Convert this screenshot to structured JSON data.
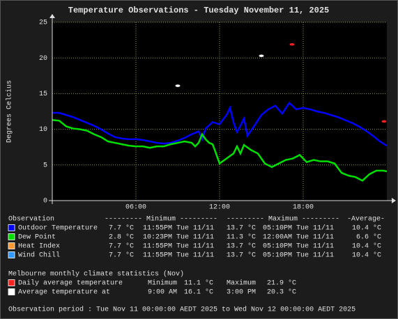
{
  "chart_data": {
    "type": "line",
    "title": "Temperature Observations - Tuesday November 11, 2025",
    "y_label": "Degrees Celcius",
    "xlim": [
      0,
      24
    ],
    "xticks": [
      {
        "value": 6,
        "label": "06:00"
      },
      {
        "value": 12,
        "label": "12:00"
      },
      {
        "value": 18,
        "label": "18:00"
      }
    ],
    "ylim": [
      0,
      25
    ],
    "yticks": [
      0,
      5,
      10,
      15,
      20,
      25
    ],
    "grid": true,
    "legend_header": [
      "Observation",
      "--------- Minimum ---------",
      "--------- Maximum ---------",
      "-Average-"
    ],
    "series": [
      {
        "name": "Outdoor Temperature",
        "color": "#0000ff",
        "stats": [
          "7.7 °C",
          "11:55PM Tue 11/11",
          "13.7 °C",
          "05:10PM Tue 11/11",
          "10.4 °C"
        ],
        "x": [
          0,
          0.5,
          1,
          1.5,
          2,
          2.5,
          3,
          3.5,
          4,
          4.5,
          5,
          5.5,
          6,
          6.5,
          7,
          7.5,
          8,
          8.5,
          9,
          9.5,
          10,
          10.5,
          10.75,
          11,
          11.5,
          12,
          12.5,
          12.75,
          13,
          13.25,
          13.5,
          13.75,
          14,
          14.5,
          15,
          15.5,
          16,
          16.5,
          17,
          17.5,
          18,
          18.5,
          19,
          19.5,
          20,
          20.5,
          21,
          21.5,
          22,
          22.5,
          23,
          23.5,
          24
        ],
        "values": [
          12.3,
          12.3,
          12.0,
          11.7,
          11.3,
          10.9,
          10.5,
          10.0,
          9.4,
          8.9,
          8.7,
          8.6,
          8.6,
          8.5,
          8.3,
          8.1,
          8.0,
          8.1,
          8.4,
          8.8,
          9.3,
          9.7,
          8.6,
          10.1,
          11.0,
          10.7,
          12.0,
          13.0,
          11.0,
          9.6,
          10.5,
          11.5,
          9.1,
          10.5,
          12.0,
          12.8,
          13.3,
          12.2,
          13.7,
          12.8,
          13.0,
          12.8,
          12.5,
          12.3,
          12.0,
          11.7,
          11.3,
          10.9,
          10.4,
          9.8,
          9.1,
          8.3,
          7.7
        ]
      },
      {
        "name": "Dew Point",
        "color": "#00e000",
        "stats": [
          "2.8 °C",
          "10:23PM Tue 11/11",
          "11.3 °C",
          "12:00AM Tue 11/11",
          "6.6 °C"
        ],
        "x": [
          0,
          0.5,
          1,
          1.5,
          2,
          2.5,
          3,
          3.5,
          4,
          4.5,
          5,
          5.5,
          6,
          6.5,
          7,
          7.5,
          8,
          8.5,
          9,
          9.5,
          10,
          10.25,
          10.5,
          10.75,
          11,
          11.25,
          11.5,
          11.75,
          12,
          12.5,
          13,
          13.25,
          13.5,
          13.75,
          14.25,
          14.75,
          15.25,
          15.75,
          16.25,
          16.75,
          17.25,
          17.75,
          18.25,
          18.75,
          19.25,
          19.75,
          20.25,
          20.75,
          21.25,
          21.75,
          22.25,
          22.75,
          23.25,
          23.75,
          24
        ],
        "values": [
          11.3,
          11.2,
          10.4,
          10.1,
          10.0,
          9.8,
          9.3,
          8.9,
          8.3,
          8.1,
          7.9,
          7.7,
          7.6,
          7.6,
          7.4,
          7.6,
          7.6,
          7.9,
          8.1,
          8.3,
          8.1,
          7.6,
          8.1,
          9.3,
          8.6,
          8.1,
          7.9,
          6.6,
          5.2,
          5.9,
          6.6,
          7.6,
          6.6,
          7.8,
          7.1,
          6.6,
          5.2,
          4.7,
          5.2,
          5.7,
          5.9,
          6.4,
          5.4,
          5.7,
          5.5,
          5.5,
          5.2,
          3.9,
          3.5,
          3.3,
          2.8,
          3.7,
          4.2,
          4.2,
          4.1
        ]
      },
      {
        "name": "Heat Index",
        "color": "#ff9933",
        "stats": [
          "7.7 °C",
          "11:55PM Tue 11/11",
          "13.7 °C",
          "05:10PM Tue 11/11",
          "10.4 °C"
        ]
      },
      {
        "name": "Wind Chill",
        "color": "#3399ff",
        "stats": [
          "7.7 °C",
          "11:55PM Tue 11/11",
          "13.7 °C",
          "05:10PM Tue 11/11",
          "10.4 °C"
        ]
      }
    ],
    "climate_title": "Melbourne monthly climate statistics (Nov)",
    "markers": [
      {
        "name": "Daily average temperature",
        "color": "#ff2020",
        "x": [
          17.2,
          23.8
        ],
        "values": [
          21.9,
          11.1
        ],
        "stats": [
          "Minimum",
          "11.1 °C",
          "Maximum",
          "21.9 °C"
        ]
      },
      {
        "name": "Average temperature at",
        "color": "#ffffff",
        "x": [
          9,
          15
        ],
        "values": [
          16.1,
          20.3
        ],
        "stats": [
          "9:00 AM",
          "16.1 °C",
          "3:00 PM",
          "20.3 °C"
        ]
      }
    ],
    "observation_period": "Observation period : Tue Nov 11 00:00:00 AEDT 2025 to Wed Nov 12 00:00:00 AEDT 2025"
  }
}
